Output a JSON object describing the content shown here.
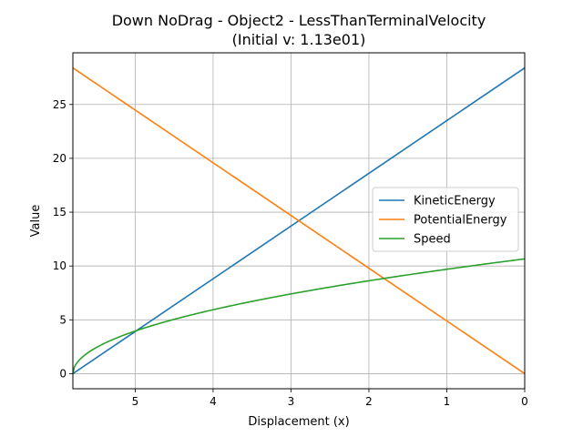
{
  "chart_data": {
    "type": "line",
    "title": "Down NoDrag - Object2 - LessThanTerminalVelocity",
    "subtitle": "(Initial v: 1.13e01)",
    "xlabel": "Displacement (x)",
    "ylabel": "Value",
    "x_inverted": true,
    "xlim": [
      5.8,
      0
    ],
    "ylim": [
      -1.4,
      29.8
    ],
    "xticks": [
      5,
      4,
      3,
      2,
      1,
      0
    ],
    "yticks": [
      0,
      5,
      10,
      15,
      20,
      25
    ],
    "grid": true,
    "legend_position": "center-right",
    "series": [
      {
        "name": "KineticEnergy",
        "color": "#1f77b4",
        "x": [
          5.8,
          0
        ],
        "y": [
          0,
          28.4
        ]
      },
      {
        "name": "PotentialEnergy",
        "color": "#ff7f0e",
        "x": [
          5.8,
          0
        ],
        "y": [
          28.4,
          0
        ]
      },
      {
        "name": "Speed",
        "color": "#2ca02c",
        "x": [
          5.8,
          5.79,
          5.78,
          5.75,
          5.7,
          5.6,
          5.5,
          5.3,
          5.0,
          4.5,
          4.0,
          3.5,
          3.0,
          2.5,
          2.0,
          1.5,
          1.0,
          0.5,
          0
        ],
        "y": [
          0,
          0.44,
          0.63,
          0.99,
          1.4,
          1.98,
          2.43,
          3.13,
          3.96,
          4.85,
          5.6,
          6.26,
          6.86,
          7.41,
          7.92,
          8.4,
          8.86,
          9.29,
          10.66
        ]
      }
    ]
  }
}
